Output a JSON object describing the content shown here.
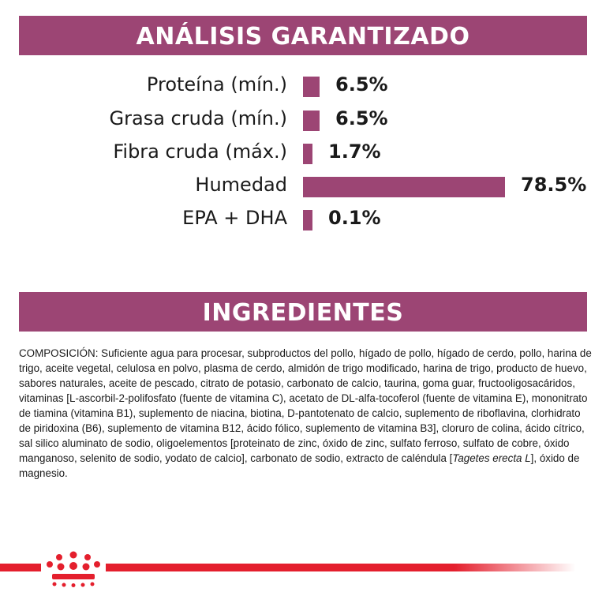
{
  "analysis": {
    "title": "ANÁLISIS GARANTIZADO",
    "rows": [
      {
        "label": "Proteína (mín.)",
        "value": "6.5%",
        "percent": 6.5
      },
      {
        "label": "Grasa cruda (mín.)",
        "value": "6.5%",
        "percent": 6.5
      },
      {
        "label": "Fibra cruda (máx.)",
        "value": "1.7%",
        "percent": 1.7
      },
      {
        "label": "Humedad",
        "value": "78.5%",
        "percent": 78.5
      },
      {
        "label": "EPA + DHA",
        "value": "0.1%",
        "percent": 0.1
      }
    ]
  },
  "ingredients": {
    "title": "INGREDIENTES",
    "text_main": "COMPOSICIÓN: Suficiente agua para procesar, subproductos del pollo, hígado de pollo, hígado de cerdo, pollo, harina de trigo, aceite vegetal, celulosa en polvo, plasma de cerdo, almidón de trigo modificado, harina de trigo, producto de huevo, sabores naturales, aceite de pescado, citrato de potasio, carbonato de calcio, taurina, goma guar, fructooligosacáridos, vitaminas [L-ascorbil-2-polifosfato (fuente de vitamina C), acetato de DL-alfa-tocoferol (fuente de vitamina E), mononitrato de tiamina (vitamina B1), suplemento de niacina, biotina, D-pantotenato de calcio, suplemento de riboflavina, clorhidrato de piridoxina (B6), suplemento de vitamina B12, ácido fólico, suplemento de vitamina B3], cloruro de colina, ácido cítrico, sal silico aluminato de sodio, oligoelementos [proteinato de zinc, óxido de zinc, sulfato ferroso, sulfato de cobre, óxido manganoso, selenito de sodio, yodato de calcio], carbonato de sodio, extracto de caléndula [",
    "text_italic": "Tagetes erecta L",
    "text_end": "], óxido de magnesio."
  },
  "colors": {
    "accent": "#9c4574",
    "brand_red": "#e41f2d"
  },
  "icons": {
    "logo": "royal-crown-icon"
  }
}
